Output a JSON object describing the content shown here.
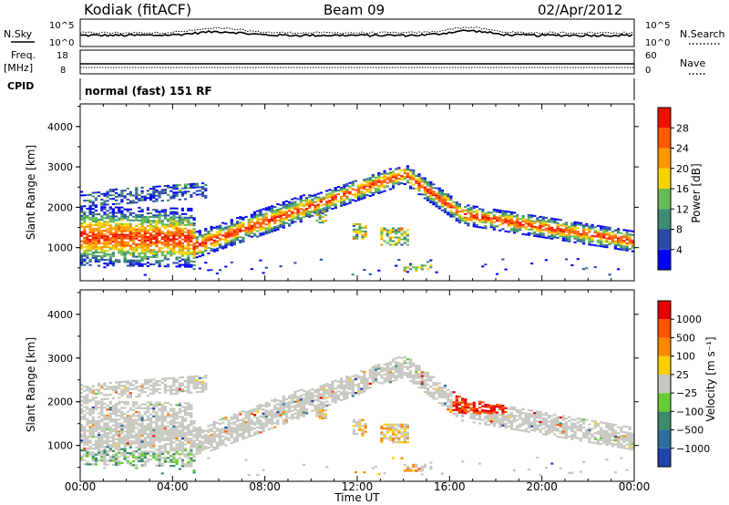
{
  "header": {
    "station": "Kodiak (fitACF)",
    "beam": "Beam 09",
    "date": "02/Apr/2012"
  },
  "params": {
    "nsky_label": "N.Sky",
    "nsearch_label": "N.Search",
    "nsky_ticks": [
      "10^5",
      "10^0"
    ],
    "nsearch_ticks": [
      "10^5",
      "10^0"
    ],
    "freq_label": [
      "Freq.",
      "[MHz]"
    ],
    "freq_ticks": [
      "18",
      "8"
    ],
    "nave_label": "Nave",
    "nave_ticks": [
      "60",
      "0"
    ],
    "cpid_label": "CPID",
    "cpid_text": "normal (fast) 151 RF"
  },
  "chart_data": [
    {
      "type": "heatmap",
      "panel": "power",
      "ylabel": "Slant Range [km]",
      "xlabel": "Time UT",
      "yticks": [
        "1000",
        "2000",
        "3000",
        "4000"
      ],
      "ylim": [
        180,
        4560
      ],
      "xlim": [
        "00:00",
        "00:00"
      ],
      "xticks": [
        "00:00",
        "04:00",
        "08:00",
        "12:00",
        "16:00",
        "20:00",
        "00:00"
      ],
      "colorbar_label": "Power [dB]",
      "colorbar_ticks": [
        "28",
        "24",
        "20",
        "16",
        "12",
        "8",
        "4"
      ],
      "colorbar_range": [
        0,
        32
      ],
      "colors": [
        "#0000ff",
        "#2a4aa6",
        "#3d8c74",
        "#66bb55",
        "#f7d400",
        "#ff9900",
        "#ff5a00",
        "#ee1100"
      ]
    },
    {
      "type": "heatmap",
      "panel": "velocity",
      "ylabel": "Slant Range [km]",
      "xlabel": "Time UT",
      "yticks": [
        "1000",
        "2000",
        "3000",
        "4000"
      ],
      "ylim": [
        180,
        4560
      ],
      "xticks": [
        "00:00",
        "04:00",
        "08:00",
        "12:00",
        "16:00",
        "20:00",
        "00:00"
      ],
      "colorbar_label": "Velocity [m s⁻¹]",
      "colorbar_ticks": [
        "1000",
        "500",
        "100",
        "25",
        "−25",
        "−100",
        "−500",
        "−1000"
      ],
      "colors": [
        "#2244aa",
        "#2e6e9e",
        "#3a8c6a",
        "#66cc33",
        "#c8c8c0",
        "#ffd000",
        "#ff8800",
        "#ff5500",
        "#e60000"
      ]
    }
  ],
  "xaxis_label": "Time UT"
}
